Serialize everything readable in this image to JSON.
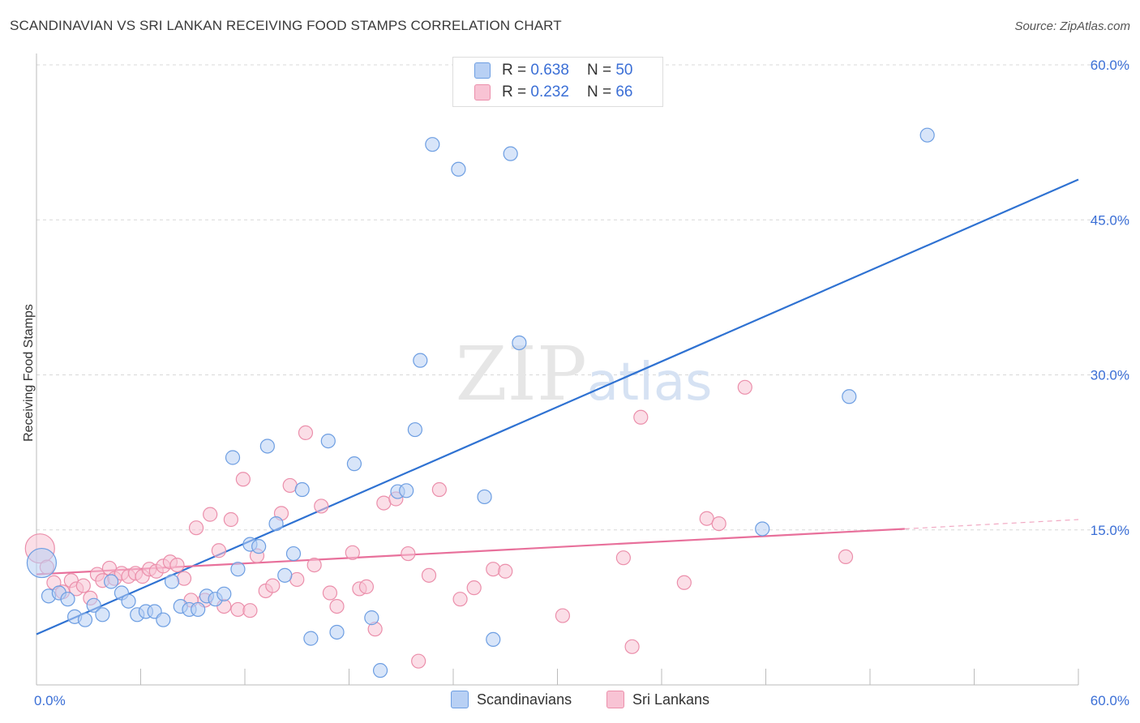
{
  "title": "SCANDINAVIAN VS SRI LANKAN RECEIVING FOOD STAMPS CORRELATION CHART",
  "source": "Source: ZipAtlas.com",
  "watermark": "ZIPatlas",
  "legend": {
    "rows": [
      {
        "r_label": "R =",
        "r_value": "0.638",
        "n_label": "N =",
        "n_value": "50"
      },
      {
        "r_label": "R =",
        "r_value": "0.232",
        "n_label": "N =",
        "n_value": "66"
      }
    ]
  },
  "bottom_legend": [
    "Scandinavians",
    "Sri Lankans"
  ],
  "colors": {
    "blue_fill": "#b8d0f4",
    "blue_stroke": "#6d9ee2",
    "blue_line": "#2f72d2",
    "pink_fill": "#f8c3d4",
    "pink_stroke": "#eb8fab",
    "pink_line": "#e8709b",
    "axis_text": "#3b6fd6",
    "grid": "#d8d8d8"
  },
  "chart_data": {
    "type": "scatter",
    "title": "SCANDINAVIAN VS SRI LANKAN RECEIVING FOOD STAMPS CORRELATION CHART",
    "xlabel": "",
    "ylabel": "Receiving Food Stamps",
    "xlim": [
      0,
      60
    ],
    "ylim": [
      0,
      60
    ],
    "x_tick_labels": [
      "0.0%",
      "60.0%"
    ],
    "y_tick_labels": [
      "15.0%",
      "30.0%",
      "45.0%",
      "60.0%"
    ],
    "y_ticks": [
      15,
      30,
      45,
      60
    ],
    "grid": "horizontal dashed",
    "series": [
      {
        "name": "Scandinavians",
        "r": 0.638,
        "n": 50,
        "trend": {
          "x": [
            0,
            60
          ],
          "y": [
            4.9,
            48.9
          ]
        },
        "points": [
          [
            0.3,
            11.8
          ],
          [
            0.7,
            8.6
          ],
          [
            1.3,
            8.9
          ],
          [
            1.8,
            8.3
          ],
          [
            2.2,
            6.6
          ],
          [
            2.8,
            6.3
          ],
          [
            3.3,
            7.7
          ],
          [
            3.8,
            6.8
          ],
          [
            4.3,
            10.0
          ],
          [
            4.9,
            8.9
          ],
          [
            5.3,
            8.1
          ],
          [
            5.8,
            6.8
          ],
          [
            6.3,
            7.1
          ],
          [
            6.8,
            7.1
          ],
          [
            7.3,
            6.3
          ],
          [
            7.8,
            10.0
          ],
          [
            8.3,
            7.6
          ],
          [
            8.8,
            7.3
          ],
          [
            9.3,
            7.3
          ],
          [
            9.8,
            8.6
          ],
          [
            10.3,
            8.3
          ],
          [
            10.8,
            8.8
          ],
          [
            11.3,
            22.0
          ],
          [
            11.6,
            11.2
          ],
          [
            12.3,
            13.6
          ],
          [
            12.8,
            13.4
          ],
          [
            13.3,
            23.1
          ],
          [
            13.8,
            15.6
          ],
          [
            14.3,
            10.6
          ],
          [
            14.8,
            12.7
          ],
          [
            15.3,
            18.9
          ],
          [
            15.8,
            4.5
          ],
          [
            16.8,
            23.6
          ],
          [
            17.3,
            5.1
          ],
          [
            18.3,
            21.4
          ],
          [
            19.3,
            6.5
          ],
          [
            19.8,
            1.4
          ],
          [
            20.8,
            18.7
          ],
          [
            21.3,
            18.8
          ],
          [
            21.8,
            24.7
          ],
          [
            22.1,
            31.4
          ],
          [
            22.8,
            52.3
          ],
          [
            24.3,
            49.9
          ],
          [
            25.8,
            18.2
          ],
          [
            26.3,
            4.4
          ],
          [
            27.3,
            51.4
          ],
          [
            27.8,
            33.1
          ],
          [
            41.8,
            15.1
          ],
          [
            46.8,
            27.9
          ],
          [
            51.3,
            53.2
          ]
        ]
      },
      {
        "name": "Sri Lankans",
        "r": 0.232,
        "n": 66,
        "trend": {
          "x": [
            0,
            50
          ],
          "y": [
            10.7,
            15.1
          ]
        },
        "trend_dashed": {
          "x": [
            50,
            60
          ],
          "y": [
            15.1,
            16.0
          ]
        },
        "points": [
          [
            0.2,
            13.2
          ],
          [
            0.6,
            11.4
          ],
          [
            1.0,
            9.9
          ],
          [
            1.5,
            9.0
          ],
          [
            2.0,
            10.1
          ],
          [
            2.3,
            9.3
          ],
          [
            2.7,
            9.6
          ],
          [
            3.1,
            8.4
          ],
          [
            3.5,
            10.7
          ],
          [
            3.8,
            10.1
          ],
          [
            4.2,
            11.3
          ],
          [
            4.5,
            10.3
          ],
          [
            4.9,
            10.8
          ],
          [
            5.3,
            10.5
          ],
          [
            5.7,
            10.8
          ],
          [
            6.1,
            10.5
          ],
          [
            6.5,
            11.2
          ],
          [
            6.9,
            11.0
          ],
          [
            7.3,
            11.5
          ],
          [
            7.7,
            11.9
          ],
          [
            8.1,
            11.6
          ],
          [
            8.5,
            10.3
          ],
          [
            8.9,
            8.2
          ],
          [
            9.2,
            15.2
          ],
          [
            9.7,
            8.2
          ],
          [
            10.0,
            16.5
          ],
          [
            10.5,
            13.0
          ],
          [
            10.8,
            7.6
          ],
          [
            11.2,
            16.0
          ],
          [
            11.6,
            7.3
          ],
          [
            11.9,
            19.9
          ],
          [
            12.3,
            7.2
          ],
          [
            12.7,
            12.5
          ],
          [
            13.2,
            9.1
          ],
          [
            13.6,
            9.6
          ],
          [
            14.1,
            16.6
          ],
          [
            14.6,
            19.3
          ],
          [
            15.0,
            10.2
          ],
          [
            15.5,
            24.4
          ],
          [
            16.0,
            11.6
          ],
          [
            16.4,
            17.3
          ],
          [
            16.9,
            8.9
          ],
          [
            17.3,
            7.6
          ],
          [
            18.2,
            12.8
          ],
          [
            18.6,
            9.3
          ],
          [
            19.0,
            9.5
          ],
          [
            19.5,
            5.4
          ],
          [
            20.0,
            17.6
          ],
          [
            20.7,
            18.0
          ],
          [
            21.4,
            12.7
          ],
          [
            22.0,
            2.3
          ],
          [
            22.6,
            10.6
          ],
          [
            23.2,
            18.9
          ],
          [
            24.4,
            8.3
          ],
          [
            25.2,
            9.4
          ],
          [
            26.3,
            11.2
          ],
          [
            27.0,
            11.0
          ],
          [
            30.3,
            6.7
          ],
          [
            33.8,
            12.3
          ],
          [
            34.3,
            3.7
          ],
          [
            34.8,
            25.9
          ],
          [
            37.3,
            9.9
          ],
          [
            38.6,
            16.1
          ],
          [
            39.3,
            15.6
          ],
          [
            40.8,
            28.8
          ],
          [
            46.6,
            12.4
          ]
        ]
      }
    ]
  }
}
